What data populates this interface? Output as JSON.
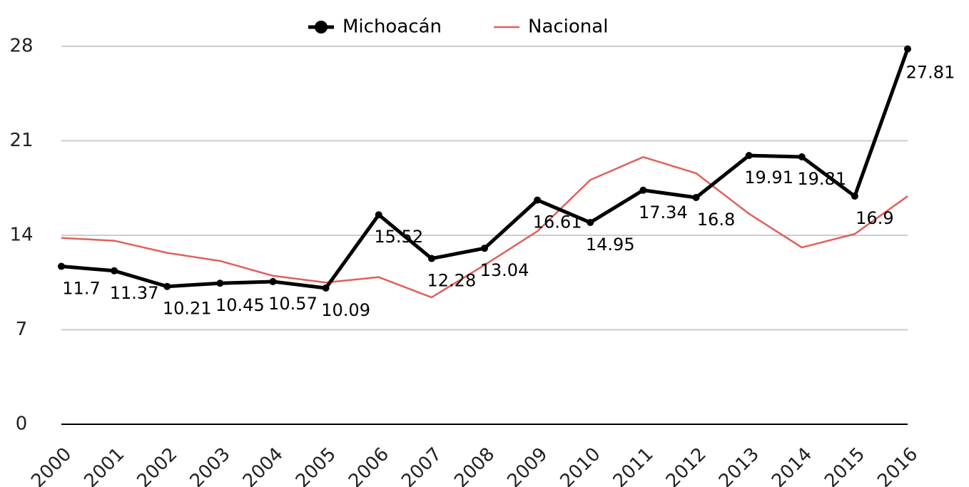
{
  "chart_data": {
    "type": "line",
    "categories": [
      "2000",
      "2001",
      "2002",
      "2003",
      "2004",
      "2005",
      "2006",
      "2007",
      "2008",
      "2009",
      "2010",
      "2011",
      "2012",
      "2013",
      "2014",
      "2015",
      "2016"
    ],
    "series": [
      {
        "name": "Michoacán",
        "color": "#000000",
        "values": [
          11.7,
          11.37,
          10.21,
          10.45,
          10.57,
          10.09,
          15.52,
          12.28,
          13.04,
          16.61,
          14.95,
          17.34,
          16.8,
          19.91,
          19.81,
          16.9,
          27.81
        ]
      },
      {
        "name": "Nacional",
        "color": "#e0605a",
        "values": [
          13.8,
          13.6,
          12.7,
          12.1,
          11.0,
          10.5,
          10.9,
          9.4,
          11.8,
          14.3,
          18.1,
          19.8,
          18.6,
          15.6,
          13.1,
          14.1,
          16.9
        ]
      }
    ],
    "ylim": [
      0,
      28
    ],
    "yticks": [
      0,
      7,
      14,
      21,
      28
    ],
    "grid": true,
    "legend": "top"
  }
}
